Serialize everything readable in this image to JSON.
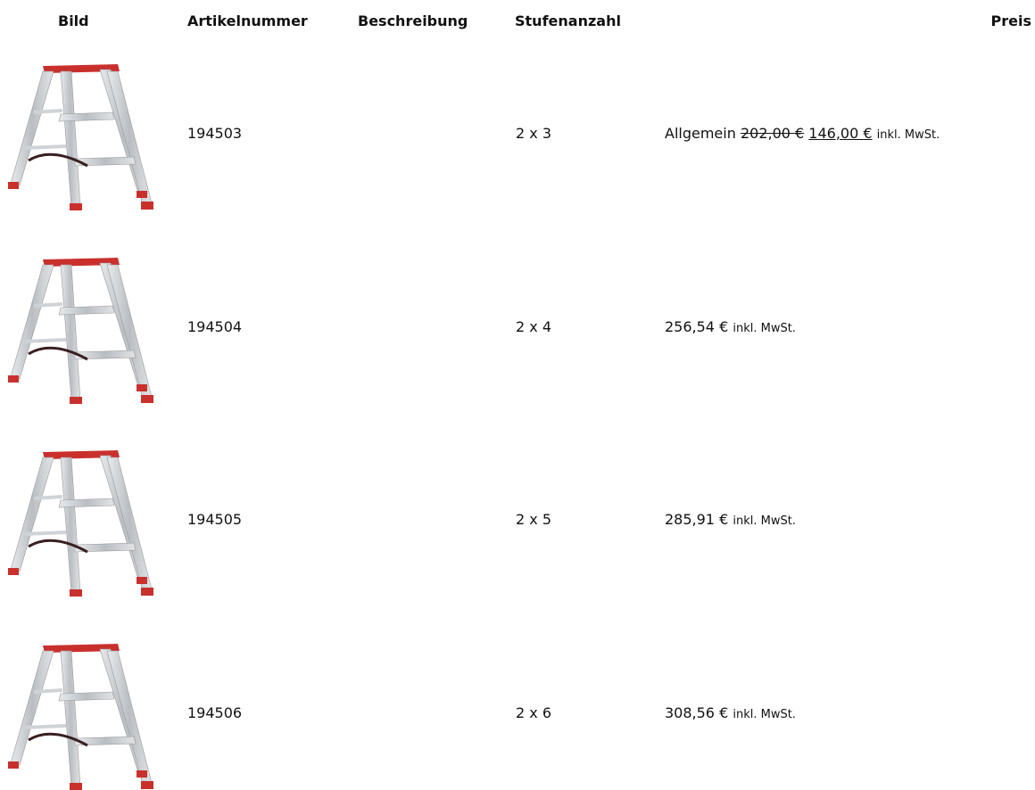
{
  "table": {
    "headers": [
      "Bild",
      "Artikelnummer",
      "Beschreibung",
      "Stufenanzahl",
      "Preis"
    ],
    "rows": [
      {
        "article": "194503",
        "steps": "2 x 3",
        "price_label": "Allgemein",
        "old_price": "202,00 €",
        "price": "146,00 €",
        "tax_note": "inkl. MwSt."
      },
      {
        "article": "194504",
        "steps": "2 x 4",
        "price": "256,54 €",
        "tax_note": "inkl. MwSt."
      },
      {
        "article": "194505",
        "steps": "2 x 5",
        "price": "285,91 €",
        "tax_note": "inkl. MwSt."
      },
      {
        "article": "194506",
        "steps": "2 x 6",
        "price": "308,56 €",
        "tax_note": "inkl. MwSt."
      }
    ]
  }
}
